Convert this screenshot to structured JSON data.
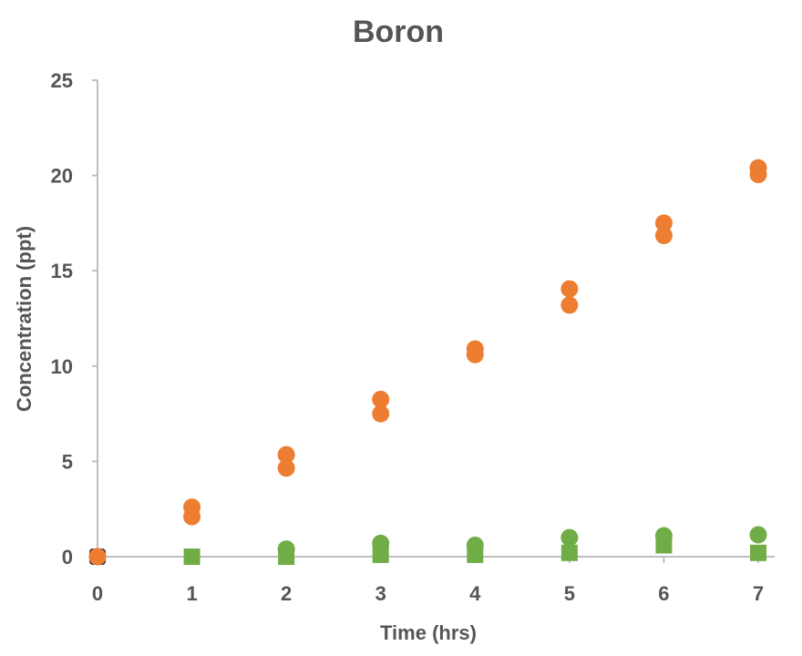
{
  "chart_data": {
    "type": "scatter",
    "title": "Boron",
    "xlabel": "Time (hrs)",
    "ylabel": "Concentration (ppt)",
    "xlim": [
      0,
      7
    ],
    "ylim": [
      0,
      25
    ],
    "xticks": [
      0,
      1,
      2,
      3,
      4,
      5,
      6,
      7
    ],
    "yticks": [
      0,
      5,
      10,
      15,
      20,
      25
    ],
    "grid": false,
    "series": [
      {
        "marker": "circle",
        "color": "#ED7D31",
        "x": [
          0,
          1,
          2,
          3,
          4,
          5,
          6,
          7
        ],
        "y": [
          0,
          2.6,
          5.35,
          8.25,
          10.9,
          14.05,
          17.5,
          20.4
        ]
      },
      {
        "marker": "circle",
        "color": "#ED7D31",
        "x": [
          0,
          1,
          2,
          3,
          4,
          5,
          6,
          7
        ],
        "y": [
          0,
          2.1,
          4.65,
          7.5,
          10.6,
          13.2,
          16.85,
          20.05
        ]
      },
      {
        "marker": "square",
        "color": "#70AD47",
        "x": [
          1,
          2,
          3,
          4,
          5,
          6,
          7
        ],
        "y": [
          0,
          0,
          0.1,
          0.1,
          0.2,
          0.6,
          0.2
        ]
      },
      {
        "marker": "circle",
        "color": "#70AD47",
        "x": [
          2,
          3,
          4,
          5,
          6,
          7
        ],
        "y": [
          0.4,
          0.7,
          0.6,
          1.0,
          1.1,
          1.15
        ]
      }
    ]
  }
}
